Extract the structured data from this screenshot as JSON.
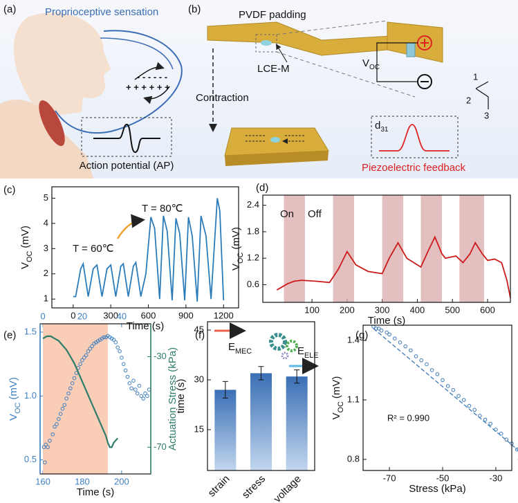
{
  "panel_labels": [
    "(a)",
    "(b)",
    "(c)",
    "(d)",
    "(e)",
    "(f)",
    "(g)"
  ],
  "diagram_a": {
    "title": "Proprioceptive sensation",
    "caption": "Action potential (AP)",
    "plus": "+ + + + + +",
    "minus": "- - - - - -"
  },
  "diagram_b": {
    "padding": "PVDF padding",
    "material": "LCE-M",
    "action": "Contraction",
    "voltage": {
      "base": "V",
      "sub": "OC"
    },
    "coefficient": {
      "base": "d",
      "sub": "31"
    },
    "caption": "Piezoelectric feedback",
    "axes": [
      "1",
      "2",
      "3"
    ]
  },
  "chart_data": [
    {
      "type": "line",
      "xlabel": "Time (s)",
      "ylabel": {
        "base": "V",
        "sub": "OC",
        "rest": " (mV)"
      },
      "xlim": [
        -170,
        1320
      ],
      "ylim": [
        0.65,
        5.45
      ],
      "xticks": [
        0,
        300,
        600,
        900,
        1200
      ],
      "yticks": [
        1,
        2,
        3,
        4,
        5
      ],
      "x": [
        0,
        20,
        60,
        80,
        120,
        160,
        190,
        230,
        270,
        300,
        340,
        380,
        400,
        440,
        480,
        500,
        540,
        580,
        620,
        650,
        690,
        720,
        750,
        790,
        820,
        850,
        890,
        920,
        950,
        990,
        1020,
        1060,
        1100,
        1150,
        1170,
        1200
      ],
      "series": [
        {
          "color": "#2b7bb9",
          "values": [
            1.1,
            1.1,
            2.2,
            2.4,
            1.1,
            2.2,
            2.35,
            1.1,
            2.2,
            2.35,
            1.1,
            2.3,
            2.4,
            1.1,
            2.3,
            2.45,
            1.1,
            2.0,
            4.25,
            3.8,
            1.0,
            4.3,
            3.7,
            0.95,
            4.2,
            3.6,
            0.95,
            4.25,
            3.5,
            0.9,
            4.3,
            3.5,
            1.0,
            5.0,
            4.5,
            0.95
          ]
        }
      ],
      "annotations": [
        "T = 60℃",
        "T = 80℃"
      ]
    },
    {
      "type": "line",
      "xlabel": "Time (s)",
      "ylabel": {
        "base": "V",
        "sub": "OC",
        "rest": " (mV)"
      },
      "xlim": [
        -40,
        665
      ],
      "ylim": [
        0.2,
        2.63
      ],
      "xticks": [
        100,
        200,
        300,
        400,
        500,
        600
      ],
      "yticks": [
        0.6,
        1.2,
        1.8,
        2.4
      ],
      "on_intervals": [
        [
          20,
          80
        ],
        [
          160,
          220
        ],
        [
          300,
          360
        ],
        [
          410,
          470
        ],
        [
          520,
          590
        ]
      ],
      "band_color": "#d9a9a9",
      "x": [
        0,
        15,
        30,
        50,
        70,
        110,
        150,
        175,
        200,
        225,
        260,
        300,
        320,
        345,
        370,
        410,
        430,
        450,
        470,
        480,
        510,
        530,
        550,
        565,
        585,
        600,
        620,
        640,
        655,
        665
      ],
      "series": [
        {
          "color": "#cc1a1a",
          "values": [
            0.48,
            0.55,
            0.62,
            0.68,
            0.7,
            0.68,
            0.65,
            0.95,
            1.35,
            1.05,
            0.9,
            0.85,
            1.2,
            1.55,
            1.2,
            1.0,
            1.35,
            1.68,
            1.3,
            1.2,
            1.25,
            1.1,
            1.3,
            1.55,
            1.3,
            1.15,
            1.18,
            1.1,
            0.7,
            0.3
          ]
        }
      ],
      "annotations": [
        "On",
        "Off"
      ]
    },
    {
      "type": "scatter",
      "xlabel": "Time (s)",
      "ylabel": {
        "base": "V",
        "sub": "OC",
        "rest": " (mV)"
      },
      "y2label": "Actuation Stress (kPa)",
      "xlim": [
        158.6,
        214.8
      ],
      "xticks": [
        160,
        180,
        200
      ],
      "x2lim": [
        -1.4,
        54.8
      ],
      "x2ticks": [
        0,
        20,
        40
      ],
      "ylim": [
        0.39,
        1.565
      ],
      "yticks": [
        0.5,
        {
          "value": 1,
          "label": "1.0"
        },
        1.5
      ],
      "y2lim": [
        -81.8,
        -15.5
      ],
      "y2ticks": [
        -30,
        -70
      ],
      "y_color": "#3d7fc1",
      "y2_color": "#2e7d6b",
      "shaded": [
        160,
        193
      ],
      "shade_color": "#f9cdb6",
      "series": [
        {
          "color": "#3d7fc1",
          "x": [
            160.5,
            161,
            161.5,
            162.5,
            163.5,
            165,
            166,
            167,
            168,
            169,
            170,
            171,
            172,
            173,
            174,
            175,
            176,
            177,
            178,
            179,
            180,
            181,
            182,
            183,
            184,
            185,
            186,
            187,
            188,
            189,
            190,
            191,
            192,
            193,
            194,
            195,
            196,
            197,
            198,
            199,
            200,
            201,
            202,
            203,
            204,
            205,
            206,
            207,
            208,
            209,
            210,
            211,
            212,
            213,
            214
          ],
          "values": [
            0.6,
            0.48,
            0.62,
            0.6,
            0.65,
            0.7,
            0.76,
            0.78,
            0.82,
            0.86,
            0.9,
            0.93,
            0.98,
            1.02,
            1.06,
            1.1,
            1.14,
            1.18,
            1.22,
            1.25,
            1.28,
            1.3,
            1.32,
            1.35,
            1.37,
            1.39,
            1.41,
            1.42,
            1.43,
            1.44,
            1.45,
            1.46,
            1.46,
            1.47,
            1.46,
            1.45,
            1.44,
            1.42,
            1.38,
            1.35,
            1.3,
            1.25,
            1.2,
            1.15,
            1.1,
            1.06,
            1.12,
            1.05,
            1.02,
            1.08,
            1.0,
            0.98,
            1.02,
            1.0,
            1.05
          ]
        },
        {
          "color": "#2e7d6b",
          "axis": "y2",
          "x_axis": "x2",
          "x": [
            0,
            2,
            4,
            6,
            8,
            10,
            12,
            14,
            16,
            18,
            20,
            22,
            24,
            26,
            28,
            30,
            32,
            33,
            34,
            35,
            36,
            37,
            38
          ],
          "values": [
            -22,
            -21,
            -21,
            -22,
            -23,
            -25,
            -27,
            -30,
            -33,
            -37,
            -41,
            -45,
            -49,
            -53,
            -57,
            -61,
            -65,
            -68,
            -70,
            -70,
            -68,
            -67,
            -66
          ]
        }
      ]
    },
    {
      "type": "bar",
      "ylabel": "time (s)",
      "categories": [
        "strain",
        "stress",
        "voltage"
      ],
      "values": [
        27,
        32,
        31
      ],
      "errors": [
        2.5,
        2,
        2
      ],
      "ylim": [
        2.7,
        47.5
      ],
      "yticks": [
        15,
        30,
        45
      ],
      "color": "#3a6fb5",
      "annotations": [
        {
          "base": "E",
          "sub": "MEC"
        },
        {
          "base": "E",
          "sub": "ELE"
        }
      ]
    },
    {
      "type": "scatter",
      "xlabel": "Stress (kPa)",
      "ylabel": {
        "base": "V",
        "sub": "OC",
        "rest": " (mV)"
      },
      "xlim": [
        -79.9,
        -24
      ],
      "xticks": [
        -70,
        -50,
        -30
      ],
      "ylim": [
        0.744,
        1.477
      ],
      "yticks": [
        0.8,
        1.1,
        1.4
      ],
      "series": [
        {
          "color": "#3a78b8",
          "x": [
            -76,
            -75,
            -74,
            -73,
            -71,
            -70,
            -68,
            -66,
            -64,
            -62,
            -60,
            -58,
            -56,
            -54,
            -52,
            -50,
            -48,
            -46,
            -44,
            -42,
            -40,
            -38,
            -36,
            -34,
            -32,
            -30,
            -28,
            -26,
            -24,
            -22,
            -21
          ],
          "values": [
            1.47,
            1.46,
            1.46,
            1.45,
            1.44,
            1.43,
            1.41,
            1.39,
            1.37,
            1.35,
            1.32,
            1.3,
            1.28,
            1.25,
            1.23,
            1.2,
            1.17,
            1.15,
            1.12,
            1.1,
            1.07,
            1.05,
            1.02,
            1.0,
            0.98,
            0.95,
            0.93,
            0.9,
            0.88,
            0.85,
            0.8
          ]
        }
      ],
      "fit": {
        "x": [
          -76,
          -21
        ],
        "values": [
          1.46,
          0.84
        ]
      },
      "annotations": [
        "R² = 0.990"
      ]
    }
  ]
}
